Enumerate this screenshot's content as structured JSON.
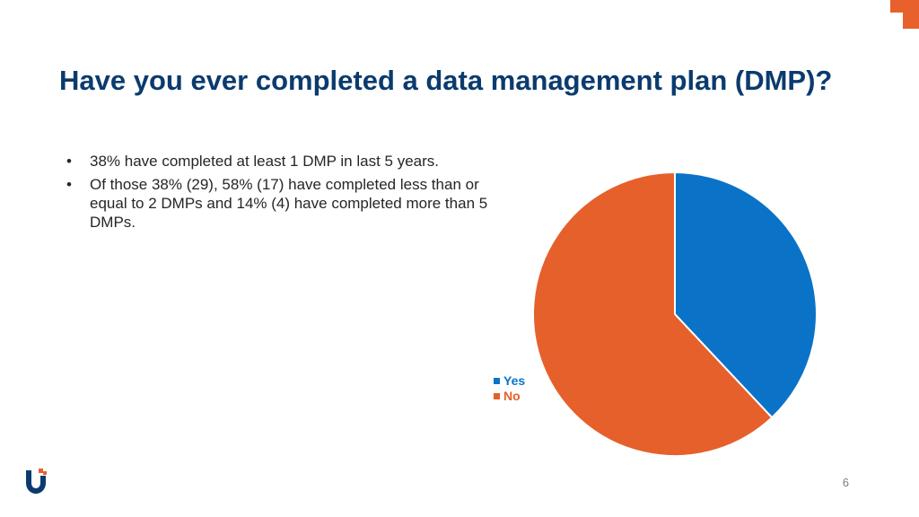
{
  "slide": {
    "title": "Have you ever completed a data management plan (DMP)?",
    "bullets": [
      "38% have completed at least 1 DMP in last 5 years.",
      "Of those 38% (29), 58% (17) have completed less than or equal to 2 DMPs and 14% (4) have completed more than 5 DMPs."
    ],
    "page_number": "6",
    "colors": {
      "title": "#0b3b6e",
      "accent": "#e8612c",
      "yes": "#0a73c8",
      "no": "#e6602b"
    }
  },
  "chart_data": {
    "type": "pie",
    "categories": [
      "Yes",
      "No"
    ],
    "values": [
      38,
      62
    ],
    "colors": [
      "#0a73c8",
      "#e6602b"
    ],
    "legend_position": "left"
  }
}
